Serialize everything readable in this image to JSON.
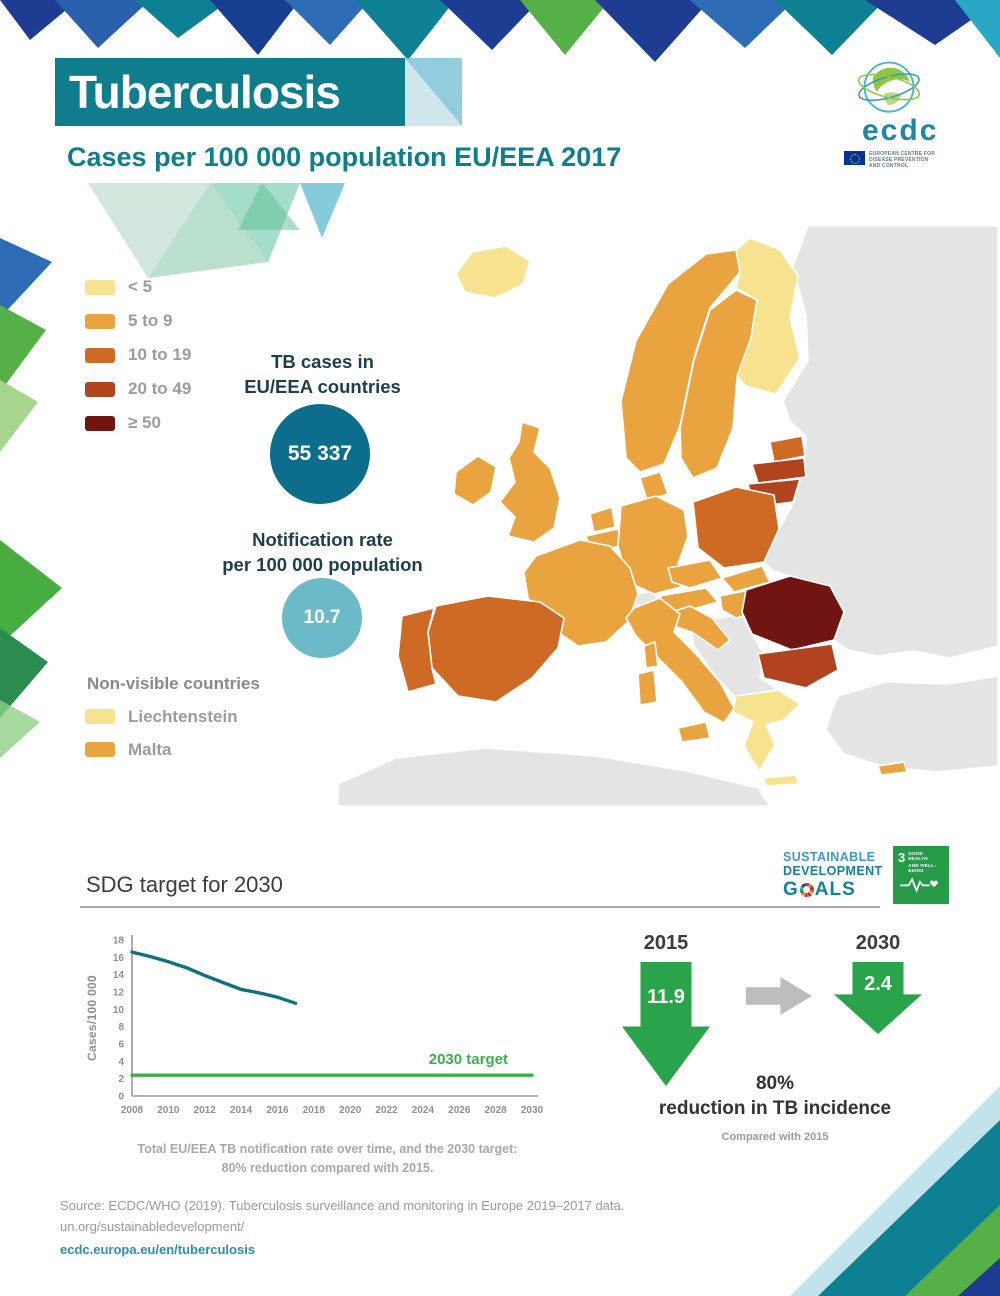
{
  "meta": {
    "title": "Tuberculosis",
    "subtitle": "Cases per 100 000 population EU/EEA 2017"
  },
  "logo": {
    "wordmark": "ecdc",
    "org_line1": "EUROPEAN CENTRE FOR",
    "org_line2": "DISEASE PREVENTION",
    "org_line3": "AND CONTROL"
  },
  "legend": {
    "items": [
      {
        "label": "< 5",
        "color": "#f7e28f"
      },
      {
        "label": "5 to 9",
        "color": "#e9a440"
      },
      {
        "label": "10 to 19",
        "color": "#ce6a24"
      },
      {
        "label": "20 to 49",
        "color": "#b1431f"
      },
      {
        "label": "≥ 50",
        "color": "#701511"
      }
    ]
  },
  "stats": {
    "tb_cases_label_line1": "TB cases in",
    "tb_cases_label_line2": "EU/EEA countries",
    "tb_cases_value": "55 337",
    "rate_label_line1": "Notification rate",
    "rate_label_line2": "per 100 000 population",
    "rate_value": "10.7"
  },
  "non_visible": {
    "title": "Non-visible countries",
    "items": [
      {
        "label": "Liechtenstein",
        "color": "#f7e28f"
      },
      {
        "label": "Malta",
        "color": "#e9a440"
      }
    ]
  },
  "map": {
    "colors": {
      "lt5": "#f7e28f",
      "r5to9": "#e9a440",
      "r10to19": "#ce6a24",
      "r20to49": "#b1431f",
      "ge50": "#701511",
      "non_eu": "#e4e4e4"
    },
    "countries": {
      "iceland": "lt5",
      "norway": "r5to9",
      "sweden": "r5to9",
      "finland": "lt5",
      "denmark": "r5to9",
      "estonia": "r10to19",
      "latvia": "r20to49",
      "lithuania": "r20to49",
      "ireland": "r5to9",
      "uk": "r5to9",
      "netherlands": "r5to9",
      "belgium": "r5to9",
      "germany": "r5to9",
      "poland": "r10to19",
      "czechia": "r5to9",
      "slovakia": "r5to9",
      "austria": "r5to9",
      "hungary": "r5to9",
      "france": "r5to9",
      "spain": "r10to19",
      "portugal": "r10to19",
      "italy": "r5to9",
      "croatia": "r5to9",
      "romania": "ge50",
      "bulgaria": "r20to49",
      "greece": "lt5",
      "sicily": "r5to9",
      "sardinia": "r5to9",
      "corsica": "r5to9",
      "crete": "lt5",
      "cyprus": "r5to9",
      "russia_east": "non_eu",
      "balkans": "non_eu",
      "switzerland": "non_eu",
      "turkey": "non_eu",
      "north_africa": "non_eu"
    }
  },
  "sdg": {
    "section_title": "SDG target for 2030",
    "wordmark_line1": "SUSTAINABLE",
    "wordmark_line2": "DEVELOPMENT",
    "goals_prefix": "G",
    "goals_suffix": "ALS",
    "goal3_number": "3",
    "goal3_label_line1": "GOOD HEALTH",
    "goal3_label_line2": "AND WELL-BEING"
  },
  "chart_data": {
    "type": "line",
    "title": "SDG target for 2030",
    "ylabel": "Cases/100 000",
    "xlabel": "",
    "xlim": [
      2008,
      2030
    ],
    "ylim": [
      0,
      18
    ],
    "xticks": [
      2008,
      2010,
      2012,
      2014,
      2016,
      2018,
      2020,
      2022,
      2024,
      2026,
      2028,
      2030
    ],
    "yticks": [
      0,
      2,
      4,
      6,
      8,
      10,
      12,
      14,
      16,
      18
    ],
    "series": [
      {
        "name": "Total EU/EEA TB notification rate",
        "color": "#0f7180",
        "x": [
          2008,
          2009,
          2010,
          2011,
          2012,
          2013,
          2014,
          2015,
          2016,
          2017
        ],
        "y": [
          16.6,
          16.1,
          15.5,
          14.8,
          13.9,
          13.1,
          12.3,
          11.9,
          11.4,
          10.7
        ]
      },
      {
        "name": "2030 target",
        "color": "#3cae4b",
        "x": [
          2008,
          2030
        ],
        "y": [
          2.4,
          2.4
        ]
      }
    ],
    "target_label": "2030 target",
    "caption_line1": "Total EU/EEA TB notification rate over time, and the 2030 target:",
    "caption_line2": "80% reduction compared with 2015.",
    "grid": false,
    "legend_position": "none"
  },
  "comparison": {
    "year_from": "2015",
    "value_from": "11.9",
    "year_to": "2030",
    "value_to": "2.4",
    "message_line1": "80%",
    "message_line2": "reduction in TB incidence",
    "footnote": "Compared with 2015"
  },
  "footer": {
    "source_line1": "Source: ECDC/WHO (2019). Tuberculosis surveillance and monitoring in Europe 2019–2017 data.",
    "source_line2": "un.org/sustainabledevelopment/",
    "link": "ecdc.europa.eu/en/tuberculosis"
  },
  "accent_colors": {
    "teal": "#0f7e8c",
    "dark_badge": "#0d6d8c",
    "light_badge": "#6cbac8",
    "green": "#2aa44a",
    "link": "#2c8faa"
  }
}
